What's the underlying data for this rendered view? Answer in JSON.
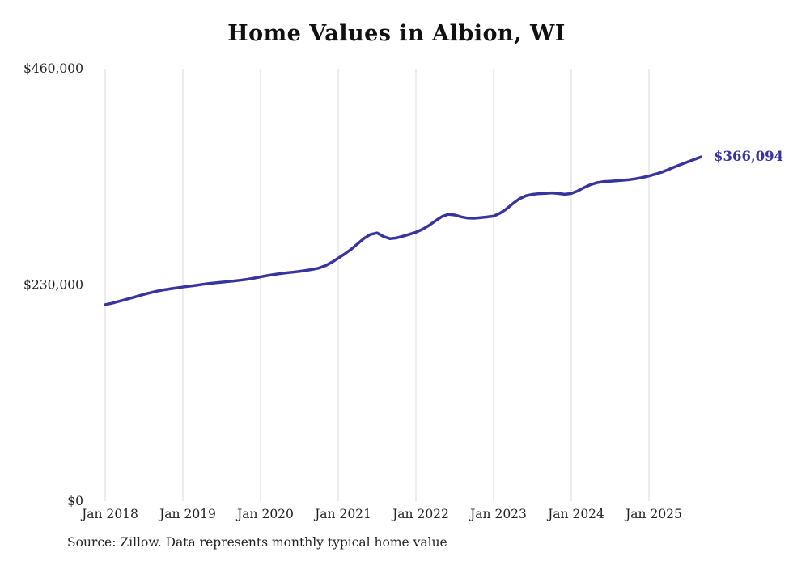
{
  "title": "Home Values in Albion, WI",
  "source_note": "Source: Zillow. Data represents monthly typical home value",
  "colors": {
    "line": "#38349e",
    "grid": "#d9d9d9",
    "tick_text": "#222222",
    "end_label": "#38349e"
  },
  "chart_data": {
    "type": "line",
    "title": "Home Values in Albion, WI",
    "series_name": "Typical home value (monthly)",
    "x": [
      "Jan 2018",
      "Feb 2018",
      "Mar 2018",
      "Apr 2018",
      "May 2018",
      "Jun 2018",
      "Jul 2018",
      "Aug 2018",
      "Sep 2018",
      "Oct 2018",
      "Nov 2018",
      "Dec 2018",
      "Jan 2019",
      "Feb 2019",
      "Mar 2019",
      "Apr 2019",
      "May 2019",
      "Jun 2019",
      "Jul 2019",
      "Aug 2019",
      "Sep 2019",
      "Oct 2019",
      "Nov 2019",
      "Dec 2019",
      "Jan 2020",
      "Feb 2020",
      "Mar 2020",
      "Apr 2020",
      "May 2020",
      "Jun 2020",
      "Jul 2020",
      "Aug 2020",
      "Sep 2020",
      "Oct 2020",
      "Nov 2020",
      "Dec 2020",
      "Jan 2021",
      "Feb 2021",
      "Mar 2021",
      "Apr 2021",
      "May 2021",
      "Jun 2021",
      "Jul 2021",
      "Aug 2021",
      "Sep 2021",
      "Oct 2021",
      "Nov 2021",
      "Dec 2021",
      "Jan 2022",
      "Feb 2022",
      "Mar 2022",
      "Apr 2022",
      "May 2022",
      "Jun 2022",
      "Jul 2022",
      "Aug 2022",
      "Sep 2022",
      "Oct 2022",
      "Nov 2022",
      "Dec 2022",
      "Jan 2023",
      "Feb 2023",
      "Mar 2023",
      "Apr 2023",
      "May 2023",
      "Jun 2023",
      "Jul 2023",
      "Aug 2023",
      "Sep 2023",
      "Oct 2023",
      "Nov 2023",
      "Dec 2023",
      "Jan 2024",
      "Feb 2024",
      "Mar 2024",
      "Apr 2024",
      "May 2024",
      "Jun 2024",
      "Jul 2024",
      "Aug 2024",
      "Sep 2024",
      "Oct 2024",
      "Nov 2024",
      "Dec 2024",
      "Jan 2025",
      "Feb 2025",
      "Mar 2025",
      "Apr 2025",
      "May 2025",
      "Jun 2025",
      "Jul 2025",
      "Aug 2025",
      "Sep 2025"
    ],
    "values": [
      209000,
      210500,
      212300,
      214200,
      216100,
      218000,
      220000,
      221800,
      223400,
      224700,
      225800,
      226800,
      227800,
      228700,
      229600,
      230600,
      231500,
      232200,
      232900,
      233600,
      234300,
      235100,
      236000,
      237200,
      238600,
      239900,
      241000,
      242000,
      242900,
      243600,
      244400,
      245400,
      246500,
      247900,
      250400,
      254100,
      258500,
      263000,
      268000,
      273800,
      279600,
      283800,
      285300,
      281500,
      279200,
      280000,
      281900,
      283900,
      286100,
      289100,
      293200,
      298100,
      302600,
      305100,
      304400,
      302400,
      301100,
      300900,
      301600,
      302300,
      303200,
      306300,
      310900,
      316600,
      321700,
      324800,
      326300,
      327100,
      327400,
      327900,
      327300,
      326400,
      327300,
      330000,
      333600,
      336700,
      338800,
      339900,
      340300,
      340800,
      341300,
      342000,
      343000,
      344300,
      345900,
      347800,
      350000,
      352700,
      355600,
      358300,
      360900,
      363500,
      366094
    ],
    "x_tick_labels": [
      "Jan 2018",
      "Jan 2019",
      "Jan 2020",
      "Jan 2021",
      "Jan 2022",
      "Jan 2023",
      "Jan 2024",
      "Jan 2025"
    ],
    "y_ticks": [
      {
        "value": 0,
        "label": "$0"
      },
      {
        "value": 230000,
        "label": "$230,000"
      },
      {
        "value": 460000,
        "label": "$460,000"
      }
    ],
    "ylim": [
      0,
      460000
    ],
    "grid": "vertical-only",
    "legend": "none",
    "end_label": "$366,094",
    "last_value": 366094
  }
}
